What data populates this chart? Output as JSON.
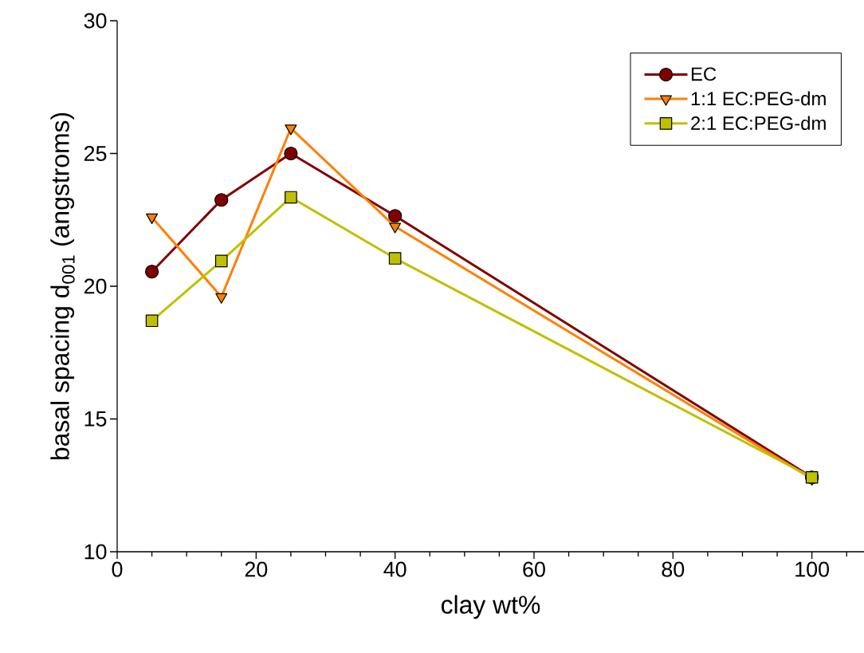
{
  "chart_data": {
    "type": "line",
    "xlabel": "clay wt%",
    "ylabel": "basal spacing d$_{001}$ (angstroms)",
    "x": [
      5,
      15,
      25,
      40,
      100
    ],
    "series": [
      {
        "name": "EC",
        "color": "#800000",
        "marker": "circle",
        "values": [
          20.55,
          23.25,
          25.0,
          22.65,
          12.8
        ]
      },
      {
        "name": "1:1 EC:PEG-dm",
        "color": "#ff8000",
        "marker": "triangle",
        "values": [
          22.6,
          19.6,
          25.95,
          22.25,
          12.75
        ]
      },
      {
        "name": "2:1 EC:PEG-dm",
        "color": "#c0c000",
        "marker": "square",
        "values": [
          18.7,
          20.95,
          23.35,
          21.05,
          12.8
        ]
      }
    ],
    "xlim": [
      0,
      107.5
    ],
    "ylim": [
      10,
      30
    ],
    "xticks": [
      0,
      {
        "value": 5,
        "label": null
      },
      {
        "value": 10,
        "label": null
      },
      {
        "value": 15,
        "label": null
      },
      20,
      {
        "value": 25,
        "label": null
      },
      {
        "value": 30,
        "label": null
      },
      {
        "value": 35,
        "label": null
      },
      40,
      {
        "value": 45,
        "label": null
      },
      {
        "value": 50,
        "label": null
      },
      {
        "value": 55,
        "label": null
      },
      60,
      {
        "value": 65,
        "label": null
      },
      {
        "value": 70,
        "label": null
      },
      {
        "value": 75,
        "label": null
      },
      80,
      {
        "value": 85,
        "label": null
      },
      {
        "value": 90,
        "label": null
      },
      {
        "value": 95,
        "label": null
      },
      100,
      {
        "value": 105,
        "label": null
      }
    ],
    "yticks": [
      10,
      15,
      20,
      25,
      30
    ],
    "legend": "top right",
    "grid": false,
    "line_style": "solid"
  }
}
